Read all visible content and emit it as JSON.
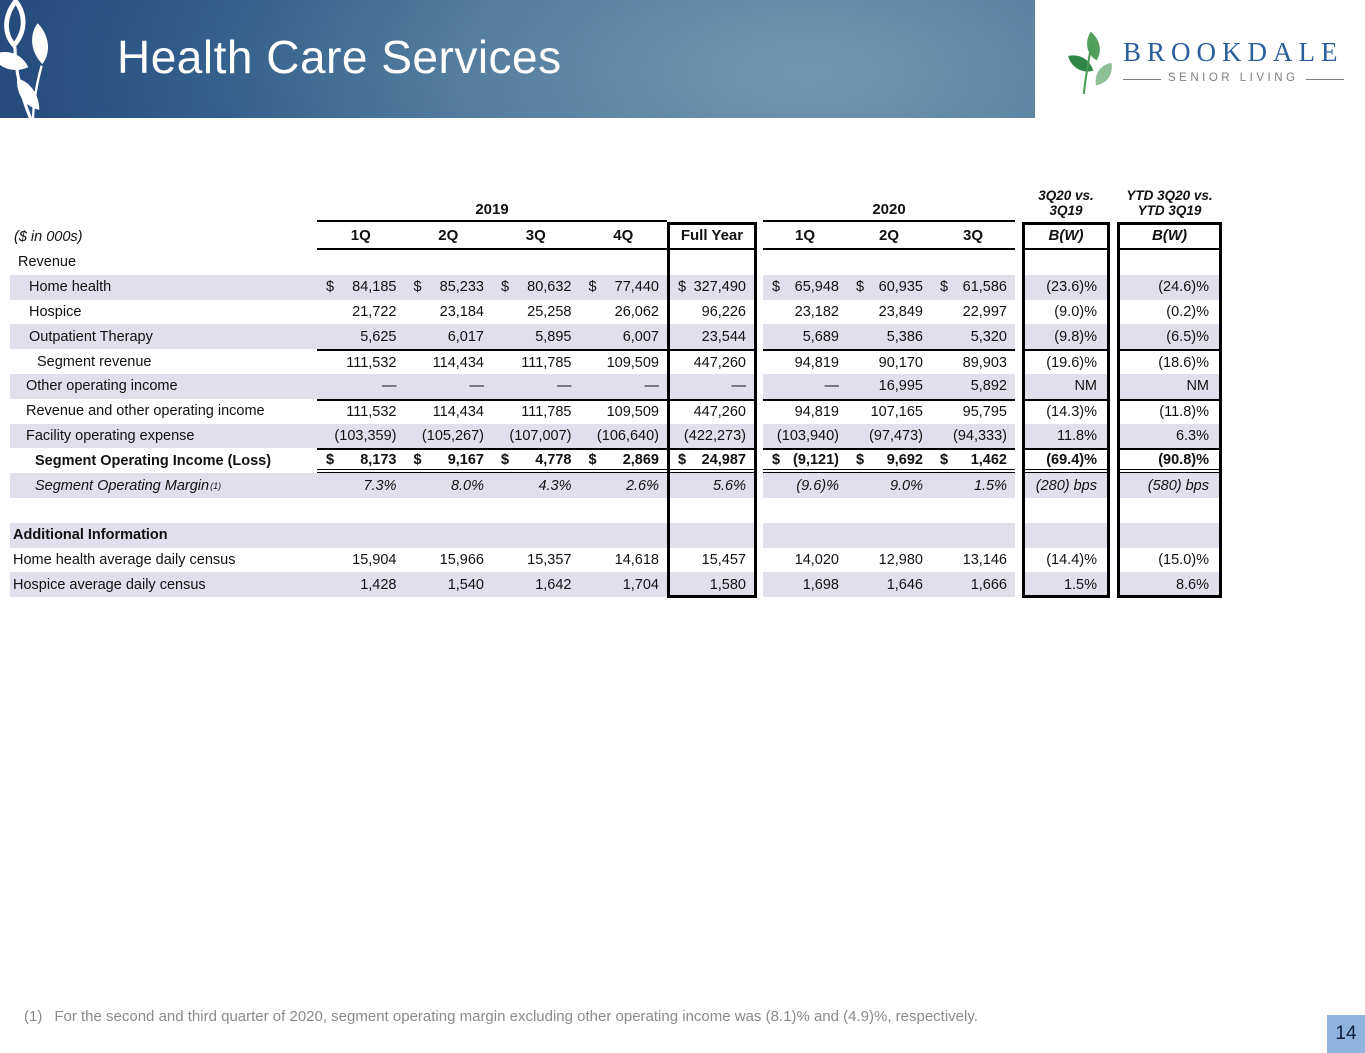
{
  "banner": {
    "title": "Health Care Services"
  },
  "brand": {
    "name": "BROOKDALE",
    "tagline": "SENIOR LIVING"
  },
  "table": {
    "units_label": "($ in 000s)",
    "group_2019": "2019",
    "group_2020": "2020",
    "vs_q": [
      "3Q20 vs.",
      "3Q19"
    ],
    "vs_ytd": [
      "YTD 3Q20 vs.",
      "YTD 3Q19"
    ],
    "bw_label": "B(W)",
    "col_headers_2019": [
      "1Q",
      "2Q",
      "3Q",
      "4Q"
    ],
    "full_year_label": "Full Year",
    "col_headers_2020": [
      "1Q",
      "2Q",
      "3Q"
    ],
    "rows": [
      {
        "label": "Revenue",
        "ind": "s",
        "cells": null
      },
      {
        "label": "Home health",
        "ind": "1",
        "shaded": true,
        "dollar": true,
        "cells": [
          "84,185",
          "85,233",
          "80,632",
          "77,440",
          "327,490",
          "65,948",
          "60,935",
          "61,586",
          "(23.6)%",
          "(24.6)%"
        ]
      },
      {
        "label": "Hospice",
        "ind": "1",
        "cells": [
          "21,722",
          "23,184",
          "25,258",
          "26,062",
          "96,226",
          "23,182",
          "23,849",
          "22,997",
          "(9.0)%",
          "(0.2)%"
        ]
      },
      {
        "label": "Outpatient Therapy",
        "ind": "1",
        "shaded": true,
        "cells": [
          "5,625",
          "6,017",
          "5,895",
          "6,007",
          "23,544",
          "5,689",
          "5,386",
          "5,320",
          "(9.8)%",
          "(6.5)%"
        ]
      },
      {
        "label": "Segment revenue",
        "ind": "2",
        "ruleTop": true,
        "cells": [
          "111,532",
          "114,434",
          "111,785",
          "109,509",
          "447,260",
          "94,819",
          "90,170",
          "89,903",
          "(19.6)%",
          "(18.6)%"
        ]
      },
      {
        "label": "Other operating income",
        "ind": "f",
        "shaded": true,
        "cells": [
          "—",
          "—",
          "—",
          "—",
          "—",
          "—",
          "16,995",
          "5,892",
          "NM",
          "NM"
        ]
      },
      {
        "label": "Revenue and other operating income",
        "ind": "f",
        "ruleTop": true,
        "cells": [
          "111,532",
          "114,434",
          "111,785",
          "109,509",
          "447,260",
          "94,819",
          "107,165",
          "95,795",
          "(14.3)%",
          "(11.8)%"
        ]
      },
      {
        "label": "Facility operating expense",
        "ind": "f",
        "shaded": true,
        "cells": [
          "(103,359)",
          "(105,267)",
          "(107,007)",
          "(106,640)",
          "(422,273)",
          "(103,940)",
          "(97,473)",
          "(94,333)",
          "11.8%",
          "6.3%"
        ]
      },
      {
        "label": "Segment Operating Income (Loss)",
        "ind": "b",
        "bold": true,
        "dollar": true,
        "ruleTop": true,
        "dblBottom": true,
        "cells": [
          "8,173",
          "9,167",
          "4,778",
          "2,869",
          "24,987",
          "(9,121)",
          "9,692",
          "1,462",
          "(69.4)%",
          "(90.8)%"
        ]
      },
      {
        "label": "Segment Operating Margin",
        "sup": "(1)",
        "ind": "b",
        "italic": true,
        "shaded": true,
        "cells": [
          "7.3%",
          "8.0%",
          "4.3%",
          "2.6%",
          "5.6%",
          "(9.6)%",
          "9.0%",
          "1.5%",
          "(280) bps",
          "(580) bps"
        ]
      },
      {
        "label": "",
        "ind": "0",
        "cells": null
      },
      {
        "label": "Additional Information",
        "ind": "0",
        "bold": true,
        "shaded": true,
        "cells": null
      },
      {
        "label": "Home health average daily census",
        "ind": "0",
        "cells": [
          "15,904",
          "15,966",
          "15,357",
          "14,618",
          "15,457",
          "14,020",
          "12,980",
          "13,146",
          "(14.4)%",
          "(15.0)%"
        ]
      },
      {
        "label": "Hospice average daily census",
        "ind": "0",
        "shaded": true,
        "cells": [
          "1,428",
          "1,540",
          "1,642",
          "1,704",
          "1,580",
          "1,698",
          "1,646",
          "1,666",
          "1.5%",
          "8.6%"
        ]
      }
    ]
  },
  "footnote": {
    "marker": "(1)",
    "text": "For the second and third quarter of 2020, segment operating margin excluding other operating income was (8.1)% and (4.9)%, respectively."
  },
  "page_number": "14",
  "colors": {
    "banner_dark": "#1c3d72",
    "banner_light": "#7397ae",
    "row_shade": "#e1dfeb",
    "brand_blue": "#2b5e9c",
    "brand_gray": "#7d7f82",
    "leaf_green_dark": "#2e8747",
    "leaf_green": "#53a05e",
    "leaf_green_light": "#8fbf94",
    "badge_blue": "#8fb3de",
    "footnote_gray": "#8a8a8a"
  }
}
